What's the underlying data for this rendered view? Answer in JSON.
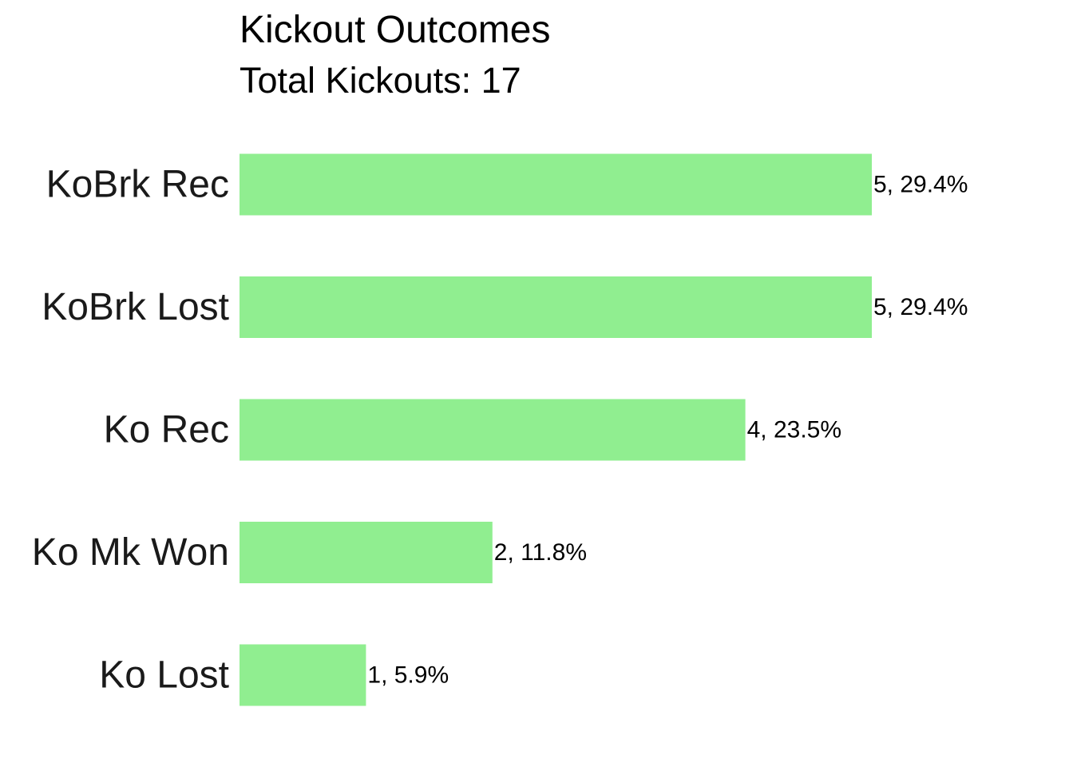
{
  "chart_data": {
    "type": "bar",
    "orientation": "horizontal",
    "title": "Kickout Outcomes",
    "subtitle": "Total Kickouts: 17",
    "categories": [
      "KoBrk Rec",
      "KoBrk Lost",
      "Ko Rec",
      "Ko Mk Won",
      "Ko Lost"
    ],
    "values": [
      5,
      5,
      4,
      2,
      1
    ],
    "data_labels": [
      "5, 29.4%",
      "5, 29.4%",
      "4, 23.5%",
      "2, 11.8%",
      "1, 5.9%"
    ],
    "xlim": [
      0,
      5
    ],
    "bar_color": "#90EE90",
    "grid": false,
    "legend": "none",
    "xlabel": "",
    "ylabel": ""
  }
}
